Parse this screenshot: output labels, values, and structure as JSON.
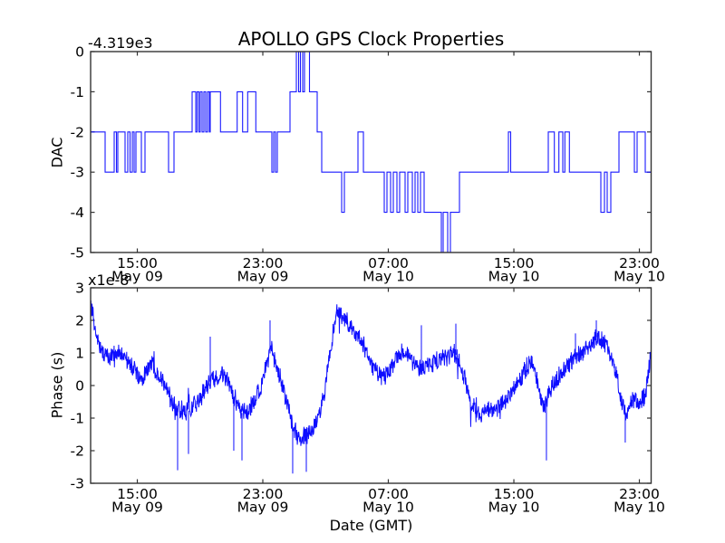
{
  "figure": {
    "background": "#ffffff",
    "axis_color": "#333333",
    "text_color": "#000000"
  },
  "chart_data": [
    {
      "type": "line",
      "subtype": "step",
      "title": "APOLLO GPS Clock Properties",
      "ylabel": "DAC",
      "y_offset_label": "-4.319e3",
      "ylim": [
        -5,
        0
      ],
      "yticks": [
        0,
        -1,
        -2,
        -3,
        -4,
        -5
      ],
      "x_range_note": "May 09 ~12:00 GMT to May 10 ~23:50 GMT",
      "xticks": [
        {
          "frac": 0.0833,
          "time": "15:00",
          "date": "May 09"
        },
        {
          "frac": 0.3072,
          "time": "23:00",
          "date": "May 09"
        },
        {
          "frac": 0.5311,
          "time": "07:00",
          "date": "May 10"
        },
        {
          "frac": 0.7551,
          "time": "15:00",
          "date": "May 10"
        },
        {
          "frac": 0.979,
          "time": "23:00",
          "date": "May 10"
        }
      ],
      "series": [
        {
          "name": "DAC",
          "color": "#0000ff",
          "steps": [
            [
              0.0,
              -2
            ],
            [
              0.0259,
              -3
            ],
            [
              0.042,
              -2
            ],
            [
              0.0461,
              -3
            ],
            [
              0.0485,
              -2
            ],
            [
              0.0614,
              -3
            ],
            [
              0.0663,
              -2
            ],
            [
              0.0703,
              -3
            ],
            [
              0.0744,
              -2
            ],
            [
              0.0776,
              -3
            ],
            [
              0.0808,
              -2
            ],
            [
              0.0905,
              -3
            ],
            [
              0.097,
              -2
            ],
            [
              0.139,
              -3
            ],
            [
              0.1487,
              -2
            ],
            [
              0.1811,
              -1
            ],
            [
              0.1875,
              -2
            ],
            [
              0.19,
              -1
            ],
            [
              0.1932,
              -2
            ],
            [
              0.1956,
              -1
            ],
            [
              0.1989,
              -2
            ],
            [
              0.2021,
              -1
            ],
            [
              0.2053,
              -2
            ],
            [
              0.2086,
              -1
            ],
            [
              0.2118,
              -2
            ],
            [
              0.2134,
              -1
            ],
            [
              0.2317,
              -2
            ],
            [
              0.2614,
              -1
            ],
            [
              0.2711,
              -2
            ],
            [
              0.2802,
              -1
            ],
            [
              0.2947,
              -2
            ],
            [
              0.3234,
              -3
            ],
            [
              0.3266,
              -2
            ],
            [
              0.3298,
              -3
            ],
            [
              0.3331,
              -2
            ],
            [
              0.3557,
              -1
            ],
            [
              0.367,
              0
            ],
            [
              0.3711,
              -1
            ],
            [
              0.3743,
              0
            ],
            [
              0.3783,
              -1
            ],
            [
              0.3816,
              0
            ],
            [
              0.3905,
              -1
            ],
            [
              0.4042,
              -2
            ],
            [
              0.4123,
              -3
            ],
            [
              0.4479,
              -4
            ],
            [
              0.4527,
              -3
            ],
            [
              0.477,
              -2
            ],
            [
              0.4867,
              -3
            ],
            [
              0.5238,
              -4
            ],
            [
              0.5287,
              -3
            ],
            [
              0.5352,
              -4
            ],
            [
              0.54,
              -3
            ],
            [
              0.5465,
              -4
            ],
            [
              0.5513,
              -3
            ],
            [
              0.561,
              -4
            ],
            [
              0.5659,
              -3
            ],
            [
              0.574,
              -4
            ],
            [
              0.5788,
              -3
            ],
            [
              0.5837,
              -4
            ],
            [
              0.5885,
              -3
            ],
            [
              0.595,
              -4
            ],
            [
              0.6257,
              -5
            ],
            [
              0.6289,
              -4
            ],
            [
              0.637,
              -5
            ],
            [
              0.6419,
              -4
            ],
            [
              0.658,
              -3
            ],
            [
              0.7453,
              -2
            ],
            [
              0.7494,
              -3
            ],
            [
              0.8165,
              -2
            ],
            [
              0.8273,
              -3
            ],
            [
              0.8354,
              -2
            ],
            [
              0.8424,
              -3
            ],
            [
              0.8461,
              -2
            ],
            [
              0.8542,
              -3
            ],
            [
              0.9103,
              -4
            ],
            [
              0.9168,
              -3
            ],
            [
              0.9216,
              -4
            ],
            [
              0.9281,
              -3
            ],
            [
              0.9426,
              -2
            ],
            [
              0.9701,
              -3
            ],
            [
              0.975,
              -2
            ],
            [
              0.9895,
              -3
            ]
          ]
        }
      ]
    },
    {
      "type": "line",
      "subtype": "noisy",
      "ylabel": "Phase (s)",
      "xlabel": "Date (GMT)",
      "y_offset_label": "x1e-8",
      "ylim": [
        -3,
        3
      ],
      "yticks": [
        3,
        2,
        1,
        0,
        -1,
        -2,
        -3
      ],
      "xticks": [
        {
          "frac": 0.0833,
          "time": "15:00",
          "date": "May 09"
        },
        {
          "frac": 0.3072,
          "time": "23:00",
          "date": "May 09"
        },
        {
          "frac": 0.5311,
          "time": "07:00",
          "date": "May 10"
        },
        {
          "frac": 0.7551,
          "time": "15:00",
          "date": "May 10"
        },
        {
          "frac": 0.979,
          "time": "23:00",
          "date": "May 10"
        }
      ],
      "series": [
        {
          "name": "Phase",
          "color": "#0000ff",
          "anchors": [
            [
              0.0,
              2.5
            ],
            [
              0.005,
              2.0
            ],
            [
              0.011,
              1.4
            ],
            [
              0.019,
              1.05
            ],
            [
              0.032,
              0.9
            ],
            [
              0.049,
              0.95
            ],
            [
              0.065,
              0.8
            ],
            [
              0.078,
              0.5
            ],
            [
              0.089,
              0.15
            ],
            [
              0.099,
              0.5
            ],
            [
              0.11,
              0.7
            ],
            [
              0.121,
              0.35
            ],
            [
              0.133,
              0.1
            ],
            [
              0.142,
              -0.4
            ],
            [
              0.155,
              -0.7
            ],
            [
              0.168,
              -0.85
            ],
            [
              0.181,
              -0.7
            ],
            [
              0.194,
              -0.45
            ],
            [
              0.207,
              0.0
            ],
            [
              0.22,
              0.25
            ],
            [
              0.233,
              0.35
            ],
            [
              0.246,
              0.1
            ],
            [
              0.255,
              -0.4
            ],
            [
              0.268,
              -0.85
            ],
            [
              0.281,
              -0.8
            ],
            [
              0.291,
              -0.5
            ],
            [
              0.302,
              -0.15
            ],
            [
              0.312,
              0.5
            ],
            [
              0.322,
              1.1
            ],
            [
              0.331,
              0.6
            ],
            [
              0.341,
              0.1
            ],
            [
              0.351,
              -0.6
            ],
            [
              0.361,
              -1.3
            ],
            [
              0.372,
              -1.6
            ],
            [
              0.385,
              -1.55
            ],
            [
              0.396,
              -1.3
            ],
            [
              0.407,
              -0.9
            ],
            [
              0.417,
              -0.3
            ],
            [
              0.425,
              0.7
            ],
            [
              0.433,
              1.7
            ],
            [
              0.44,
              2.3
            ],
            [
              0.448,
              2.1
            ],
            [
              0.458,
              1.95
            ],
            [
              0.467,
              1.8
            ],
            [
              0.477,
              1.55
            ],
            [
              0.487,
              1.2
            ],
            [
              0.496,
              0.8
            ],
            [
              0.506,
              0.5
            ],
            [
              0.516,
              0.25
            ],
            [
              0.525,
              0.3
            ],
            [
              0.535,
              0.55
            ],
            [
              0.545,
              0.85
            ],
            [
              0.555,
              1.05
            ],
            [
              0.564,
              1.0
            ],
            [
              0.574,
              0.75
            ],
            [
              0.584,
              0.55
            ],
            [
              0.593,
              0.5
            ],
            [
              0.605,
              0.65
            ],
            [
              0.616,
              0.75
            ],
            [
              0.627,
              0.8
            ],
            [
              0.639,
              0.9
            ],
            [
              0.65,
              1.0
            ],
            [
              0.66,
              0.65
            ],
            [
              0.669,
              0.1
            ],
            [
              0.677,
              -0.5
            ],
            [
              0.686,
              -0.8
            ],
            [
              0.695,
              -0.85
            ],
            [
              0.707,
              -0.8
            ],
            [
              0.718,
              -0.75
            ],
            [
              0.729,
              -0.6
            ],
            [
              0.741,
              -0.45
            ],
            [
              0.752,
              -0.2
            ],
            [
              0.763,
              0.1
            ],
            [
              0.774,
              0.45
            ],
            [
              0.784,
              0.75
            ],
            [
              0.792,
              0.6
            ],
            [
              0.799,
              -0.1
            ],
            [
              0.807,
              -0.7
            ],
            [
              0.813,
              -0.5
            ],
            [
              0.821,
              -0.1
            ],
            [
              0.831,
              0.15
            ],
            [
              0.841,
              0.4
            ],
            [
              0.852,
              0.6
            ],
            [
              0.863,
              0.85
            ],
            [
              0.875,
              1.0
            ],
            [
              0.886,
              1.15
            ],
            [
              0.896,
              1.35
            ],
            [
              0.905,
              1.55
            ],
            [
              0.913,
              1.35
            ],
            [
              0.921,
              1.2
            ],
            [
              0.93,
              0.8
            ],
            [
              0.938,
              0.3
            ],
            [
              0.946,
              -0.4
            ],
            [
              0.954,
              -0.9
            ],
            [
              0.962,
              -0.55
            ],
            [
              0.972,
              -0.45
            ],
            [
              0.981,
              -0.55
            ],
            [
              0.99,
              -0.3
            ],
            [
              0.996,
              0.5
            ],
            [
              1.0,
              1.0
            ]
          ],
          "spikes": [
            [
              0.1552,
              -2.6
            ],
            [
              0.1746,
              -2.1
            ],
            [
              0.2134,
              1.5
            ],
            [
              0.2554,
              -2.0
            ],
            [
              0.27,
              -2.3
            ],
            [
              0.3201,
              2.0
            ],
            [
              0.3605,
              -2.7
            ],
            [
              0.3848,
              -2.65
            ],
            [
              0.5901,
              1.85
            ],
            [
              0.6516,
              1.9
            ],
            [
              0.8132,
              -2.3
            ],
            [
              0.865,
              1.6
            ],
            [
              0.9022,
              2.0
            ],
            [
              0.9538,
              -1.75
            ]
          ],
          "noise": {
            "amp": 0.26,
            "micro": 0.08,
            "rare_amp": 0.6,
            "rare_p": 0.015,
            "seed": 1234
          }
        }
      ]
    }
  ]
}
